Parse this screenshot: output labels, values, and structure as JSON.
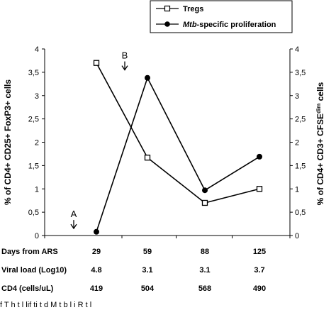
{
  "chart_data": {
    "type": "line",
    "categories": [
      "29",
      "59",
      "88",
      "125"
    ],
    "series": [
      {
        "name": "Tregs",
        "axis": "left",
        "marker": "open-square",
        "color": "#000000",
        "values": [
          3.7,
          1.67,
          0.7,
          1.0
        ]
      },
      {
        "name": "Mtb-specific proliferation",
        "name_italic": "Mtb",
        "name_rest": "-specific proliferation",
        "axis": "right",
        "marker": "filled-circle",
        "color": "#000000",
        "values": [
          0.08,
          3.38,
          0.97,
          1.69
        ]
      }
    ],
    "ylabel_left": "% of CD4+ CD25+ FoxP3+ cells",
    "ylabel_right_main": "% of CD4+ CD3+ CFSE",
    "ylabel_right_sup": "dim",
    "ylabel_right_tail": " cells",
    "ylim_left": [
      0,
      4
    ],
    "ylim_right": [
      0,
      4
    ],
    "yticks_left": [
      "0",
      "0,5",
      "1",
      "1,5",
      "2",
      "2,5",
      "3",
      "3,5",
      "4"
    ],
    "yticks_right": [
      "0",
      "0,5",
      "1",
      "1,5",
      "2",
      "2,5",
      "3",
      "3,5",
      "4"
    ],
    "legend_placement": "top-right",
    "grid": false,
    "annotations": [
      {
        "label": "A",
        "x": "29",
        "y": 0.15,
        "arrow": "down"
      },
      {
        "label": "B",
        "x": "59",
        "y": 3.55,
        "arrow": "down"
      }
    ],
    "table_rows": [
      {
        "label": "Days from ARS",
        "values": [
          "29",
          "59",
          "88",
          "125"
        ]
      },
      {
        "label": "Viral load (Log10)",
        "values": [
          "4.8",
          "3.1",
          "3.1",
          "3.7"
        ]
      },
      {
        "label": "CD4 (cells/uL)",
        "values": [
          "419",
          "504",
          "568",
          "490"
        ]
      }
    ]
  },
  "caption_fragment": "f T       h     t       l        lif    ti                         t d  M t b    l   i   R         t        l"
}
